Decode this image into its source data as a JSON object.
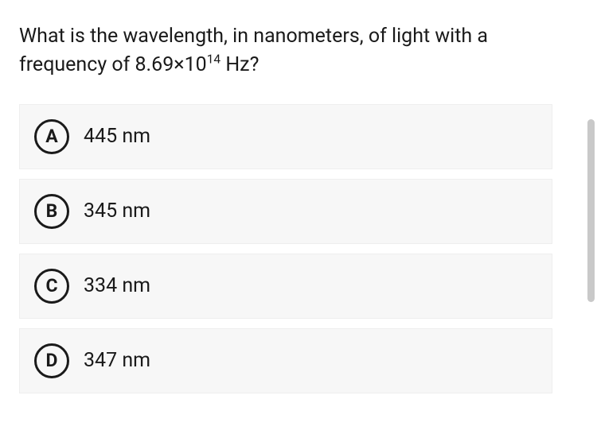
{
  "question": {
    "prefix": "What is the wavelength, in nanometers, of light with a frequency of 8.69×10",
    "exponent": "14",
    "suffix": " Hz?"
  },
  "options": [
    {
      "letter": "A",
      "text": "445 nm"
    },
    {
      "letter": "B",
      "text": "345 nm"
    },
    {
      "letter": "C",
      "text": "334 nm"
    },
    {
      "letter": "D",
      "text": "347 nm"
    }
  ],
  "colors": {
    "text": "#1a1a1a",
    "option_bg": "#f7f7f7",
    "option_border": "#eeeeee",
    "circle_border": "#1a1a1a",
    "scrollbar": "#c9c9c9",
    "page_bg": "#ffffff"
  }
}
